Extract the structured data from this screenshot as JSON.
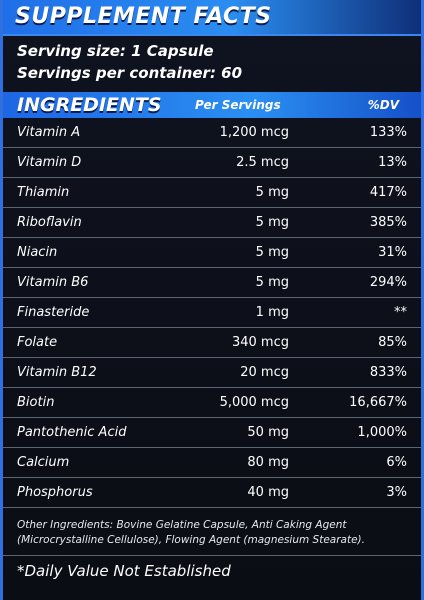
{
  "banner": {
    "title": "SUPPLEMENT FACTS"
  },
  "serving": {
    "size": "Serving size: 1 Capsule",
    "per_container": "Servings per container: 60"
  },
  "ingredients_header": {
    "title": "INGREDIENTS",
    "per_servings": "Per Servings",
    "dv": "%DV"
  },
  "rows": [
    {
      "name": "Vitamin A",
      "amount": "1,200 mcg",
      "dv": "133%"
    },
    {
      "name": "Vitamin D",
      "amount": "2.5 mcg",
      "dv": "13%"
    },
    {
      "name": "Thiamin",
      "amount": "5 mg",
      "dv": "417%"
    },
    {
      "name": "Riboflavin",
      "amount": "5 mg",
      "dv": "385%"
    },
    {
      "name": "Niacin",
      "amount": "5 mg",
      "dv": "31%"
    },
    {
      "name": "Vitamin B6",
      "amount": "5 mg",
      "dv": "294%"
    },
    {
      "name": "Finasteride",
      "amount": "1 mg",
      "dv": "**"
    },
    {
      "name": "Folate",
      "amount": "340 mcg",
      "dv": "85%"
    },
    {
      "name": "Vitamin B12",
      "amount": "20 mcg",
      "dv": "833%"
    },
    {
      "name": "Biotin",
      "amount": "5,000 mcg",
      "dv": "16,667%"
    },
    {
      "name": "Pantothenic Acid",
      "amount": "50 mg",
      "dv": "1,000%"
    },
    {
      "name": "Calcium",
      "amount": "80 mg",
      "dv": "6%"
    },
    {
      "name": "Phosphorus",
      "amount": "40 mg",
      "dv": "3%"
    }
  ],
  "other_ingredients": "Other Ingredients: Bovine Gelatine Capsule, Anti Caking Agent (Microcrystalline Cellulose), Flowing Agent (magnesium Stearate).",
  "footnote": "*Daily Value Not Established",
  "colors": {
    "accent": "#2a8df0",
    "background": "#0c0f16",
    "divider": "#5d6472"
  }
}
